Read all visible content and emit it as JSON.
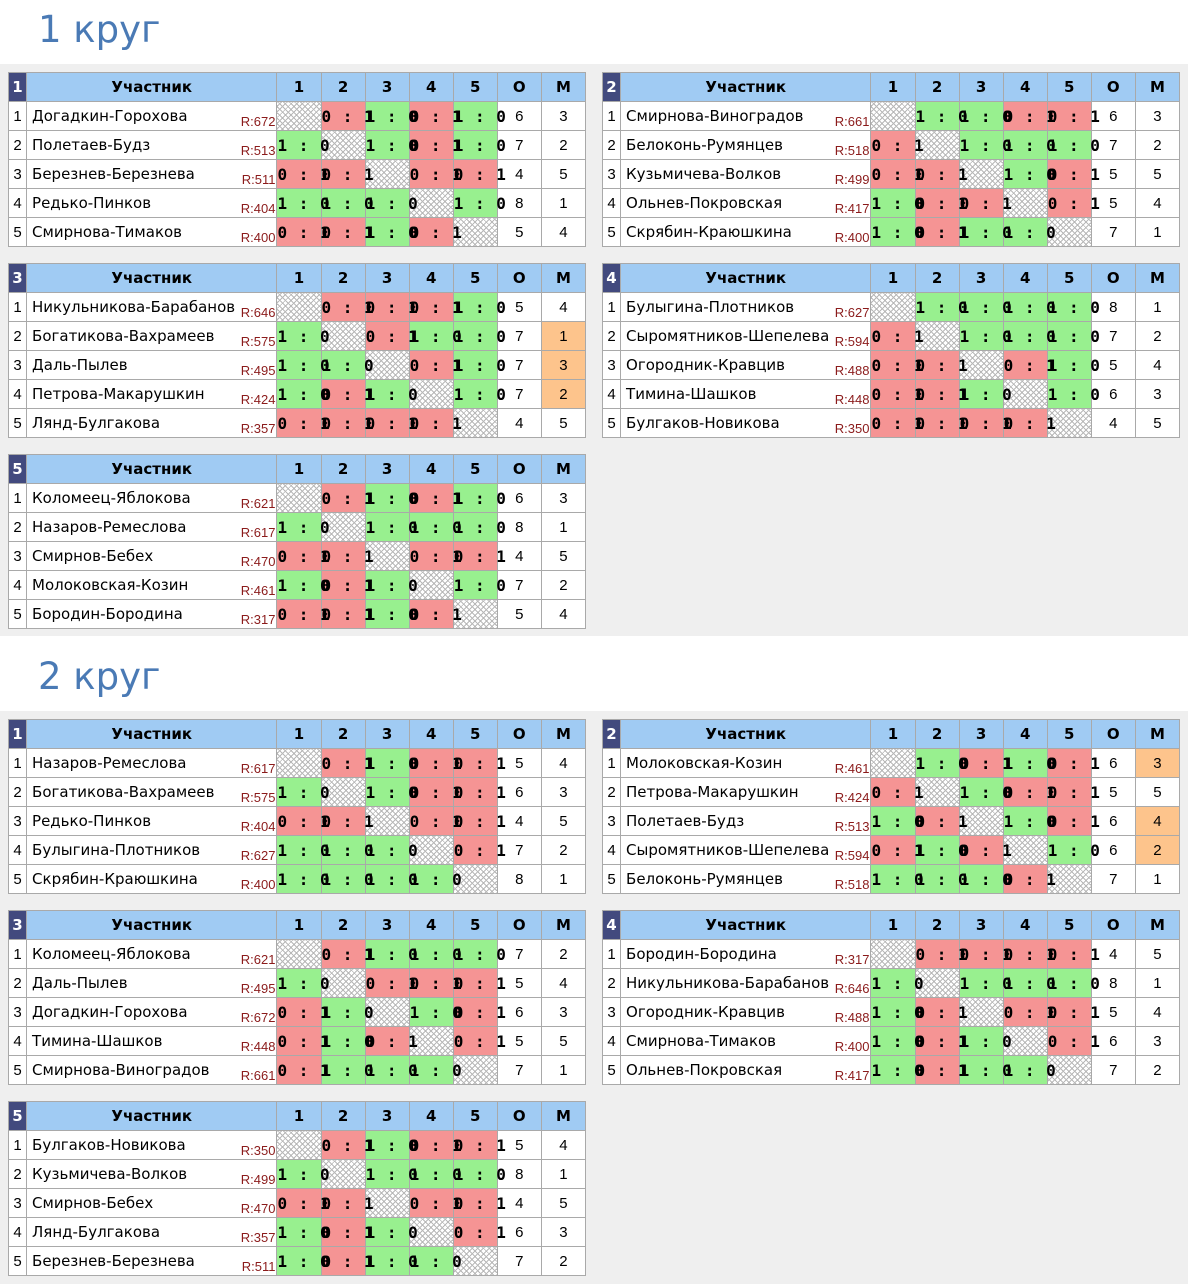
{
  "headers": {
    "participant": "Участник",
    "cols": [
      "1",
      "2",
      "3",
      "4",
      "5"
    ],
    "o": "О",
    "m": "М"
  },
  "colors": {
    "win": "#98f08f",
    "loss": "#f59494",
    "place_highlight": "#fdc48c",
    "header": "#a0cbf3",
    "group_num": "#424a7e",
    "title": "#4a7ab5"
  },
  "rounds": [
    {
      "title": "1 круг",
      "groups": [
        {
          "num": "1",
          "rows": [
            {
              "rank": "1",
              "name": "Догадкин-Горохова",
              "rating": "R:672",
              "cells": [
                "",
                "0 : 1",
                "1 : 0",
                "0 : 1",
                "1 : 0"
              ],
              "o": "6",
              "m": "3",
              "hl": false
            },
            {
              "rank": "2",
              "name": "Полетаев-Будз",
              "rating": "R:513",
              "cells": [
                "1 : 0",
                "",
                "1 : 0",
                "0 : 1",
                "1 : 0"
              ],
              "o": "7",
              "m": "2",
              "hl": false
            },
            {
              "rank": "3",
              "name": "Березнев-Березнева",
              "rating": "R:511",
              "cells": [
                "0 : 1",
                "0 : 1",
                "",
                "0 : 1",
                "0 : 1"
              ],
              "o": "4",
              "m": "5",
              "hl": false
            },
            {
              "rank": "4",
              "name": "Редько-Пинков",
              "rating": "R:404",
              "cells": [
                "1 : 0",
                "1 : 0",
                "1 : 0",
                "",
                "1 : 0"
              ],
              "o": "8",
              "m": "1",
              "hl": false
            },
            {
              "rank": "5",
              "name": "Смирнова-Тимаков",
              "rating": "R:400",
              "cells": [
                "0 : 1",
                "0 : 1",
                "1 : 0",
                "0 : 1",
                ""
              ],
              "o": "5",
              "m": "4",
              "hl": false
            }
          ]
        },
        {
          "num": "2",
          "rows": [
            {
              "rank": "1",
              "name": "Смирнова-Виноградов",
              "rating": "R:661",
              "cells": [
                "",
                "1 : 0",
                "1 : 0",
                "0 : 1",
                "0 : 1"
              ],
              "o": "6",
              "m": "3",
              "hl": false
            },
            {
              "rank": "2",
              "name": "Белоконь-Румянцев",
              "rating": "R:518",
              "cells": [
                "0 : 1",
                "",
                "1 : 0",
                "1 : 0",
                "1 : 0"
              ],
              "o": "7",
              "m": "2",
              "hl": false
            },
            {
              "rank": "3",
              "name": "Кузьмичева-Волков",
              "rating": "R:499",
              "cells": [
                "0 : 1",
                "0 : 1",
                "",
                "1 : 0",
                "0 : 1"
              ],
              "o": "5",
              "m": "5",
              "hl": false
            },
            {
              "rank": "4",
              "name": "Ольнев-Покровская",
              "rating": "R:417",
              "cells": [
                "1 : 0",
                "0 : 1",
                "0 : 1",
                "",
                "0 : 1"
              ],
              "o": "5",
              "m": "4",
              "hl": false
            },
            {
              "rank": "5",
              "name": "Скрябин-Краюшкина",
              "rating": "R:400",
              "cells": [
                "1 : 0",
                "0 : 1",
                "1 : 0",
                "1 : 0",
                ""
              ],
              "o": "7",
              "m": "1",
              "hl": false
            }
          ]
        },
        {
          "num": "3",
          "rows": [
            {
              "rank": "1",
              "name": "Никульникова-Барабанов",
              "rating": "R:646",
              "cells": [
                "",
                "0 : 1",
                "0 : 1",
                "0 : 1",
                "1 : 0"
              ],
              "o": "5",
              "m": "4",
              "hl": false
            },
            {
              "rank": "2",
              "name": "Богатикова-Вахрамеев",
              "rating": "R:575",
              "cells": [
                "1 : 0",
                "",
                "0 : 1",
                "1 : 0",
                "1 : 0"
              ],
              "o": "7",
              "m": "1",
              "hl": true
            },
            {
              "rank": "3",
              "name": "Даль-Пылев",
              "rating": "R:495",
              "cells": [
                "1 : 0",
                "1 : 0",
                "",
                "0 : 1",
                "1 : 0"
              ],
              "o": "7",
              "m": "3",
              "hl": true
            },
            {
              "rank": "4",
              "name": "Петрова-Макарушкин",
              "rating": "R:424",
              "cells": [
                "1 : 0",
                "0 : 1",
                "1 : 0",
                "",
                "1 : 0"
              ],
              "o": "7",
              "m": "2",
              "hl": true
            },
            {
              "rank": "5",
              "name": "Лянд-Булгакова",
              "rating": "R:357",
              "cells": [
                "0 : 1",
                "0 : 1",
                "0 : 1",
                "0 : 1",
                ""
              ],
              "o": "4",
              "m": "5",
              "hl": false
            }
          ]
        },
        {
          "num": "4",
          "rows": [
            {
              "rank": "1",
              "name": "Булыгина-Плотников",
              "rating": "R:627",
              "cells": [
                "",
                "1 : 0",
                "1 : 0",
                "1 : 0",
                "1 : 0"
              ],
              "o": "8",
              "m": "1",
              "hl": false
            },
            {
              "rank": "2",
              "name": "Сыромятников-Шепелева",
              "rating": "R:594",
              "cells": [
                "0 : 1",
                "",
                "1 : 0",
                "1 : 0",
                "1 : 0"
              ],
              "o": "7",
              "m": "2",
              "hl": false
            },
            {
              "rank": "3",
              "name": "Огородник-Кравцив",
              "rating": "R:488",
              "cells": [
                "0 : 1",
                "0 : 1",
                "",
                "0 : 1",
                "1 : 0"
              ],
              "o": "5",
              "m": "4",
              "hl": false
            },
            {
              "rank": "4",
              "name": "Тимина-Шашков",
              "rating": "R:448",
              "cells": [
                "0 : 1",
                "0 : 1",
                "1 : 0",
                "",
                "1 : 0"
              ],
              "o": "6",
              "m": "3",
              "hl": false
            },
            {
              "rank": "5",
              "name": "Булгаков-Новикова",
              "rating": "R:350",
              "cells": [
                "0 : 1",
                "0 : 1",
                "0 : 1",
                "0 : 1",
                ""
              ],
              "o": "4",
              "m": "5",
              "hl": false
            }
          ]
        },
        {
          "num": "5",
          "rows": [
            {
              "rank": "1",
              "name": "Коломеец-Яблокова",
              "rating": "R:621",
              "cells": [
                "",
                "0 : 1",
                "1 : 0",
                "0 : 1",
                "1 : 0"
              ],
              "o": "6",
              "m": "3",
              "hl": false
            },
            {
              "rank": "2",
              "name": "Назаров-Ремеслова",
              "rating": "R:617",
              "cells": [
                "1 : 0",
                "",
                "1 : 0",
                "1 : 0",
                "1 : 0"
              ],
              "o": "8",
              "m": "1",
              "hl": false
            },
            {
              "rank": "3",
              "name": "Смирнов-Бебех",
              "rating": "R:470",
              "cells": [
                "0 : 1",
                "0 : 1",
                "",
                "0 : 1",
                "0 : 1"
              ],
              "o": "4",
              "m": "5",
              "hl": false
            },
            {
              "rank": "4",
              "name": "Молоковская-Козин",
              "rating": "R:461",
              "cells": [
                "1 : 0",
                "0 : 1",
                "1 : 0",
                "",
                "1 : 0"
              ],
              "o": "7",
              "m": "2",
              "hl": false
            },
            {
              "rank": "5",
              "name": "Бородин-Бородина",
              "rating": "R:317",
              "cells": [
                "0 : 1",
                "0 : 1",
                "1 : 0",
                "0 : 1",
                ""
              ],
              "o": "5",
              "m": "4",
              "hl": false
            }
          ]
        }
      ]
    },
    {
      "title": "2 круг",
      "groups": [
        {
          "num": "1",
          "rows": [
            {
              "rank": "1",
              "name": "Назаров-Ремеслова",
              "rating": "R:617",
              "cells": [
                "",
                "0 : 1",
                "1 : 0",
                "0 : 1",
                "0 : 1"
              ],
              "o": "5",
              "m": "4",
              "hl": false
            },
            {
              "rank": "2",
              "name": "Богатикова-Вахрамеев",
              "rating": "R:575",
              "cells": [
                "1 : 0",
                "",
                "1 : 0",
                "0 : 1",
                "0 : 1"
              ],
              "o": "6",
              "m": "3",
              "hl": false
            },
            {
              "rank": "3",
              "name": "Редько-Пинков",
              "rating": "R:404",
              "cells": [
                "0 : 1",
                "0 : 1",
                "",
                "0 : 1",
                "0 : 1"
              ],
              "o": "4",
              "m": "5",
              "hl": false
            },
            {
              "rank": "4",
              "name": "Булыгина-Плотников",
              "rating": "R:627",
              "cells": [
                "1 : 0",
                "1 : 0",
                "1 : 0",
                "",
                "0 : 1"
              ],
              "o": "7",
              "m": "2",
              "hl": false
            },
            {
              "rank": "5",
              "name": "Скрябин-Краюшкина",
              "rating": "R:400",
              "cells": [
                "1 : 0",
                "1 : 0",
                "1 : 0",
                "1 : 0",
                ""
              ],
              "o": "8",
              "m": "1",
              "hl": false
            }
          ]
        },
        {
          "num": "2",
          "rows": [
            {
              "rank": "1",
              "name": "Молоковская-Козин",
              "rating": "R:461",
              "cells": [
                "",
                "1 : 0",
                "0 : 1",
                "1 : 0",
                "0 : 1"
              ],
              "o": "6",
              "m": "3",
              "hl": true
            },
            {
              "rank": "2",
              "name": "Петрова-Макарушкин",
              "rating": "R:424",
              "cells": [
                "0 : 1",
                "",
                "1 : 0",
                "0 : 1",
                "0 : 1"
              ],
              "o": "5",
              "m": "5",
              "hl": false
            },
            {
              "rank": "3",
              "name": "Полетаев-Будз",
              "rating": "R:513",
              "cells": [
                "1 : 0",
                "0 : 1",
                "",
                "1 : 0",
                "0 : 1"
              ],
              "o": "6",
              "m": "4",
              "hl": true
            },
            {
              "rank": "4",
              "name": "Сыромятников-Шепелева",
              "rating": "R:594",
              "cells": [
                "0 : 1",
                "1 : 0",
                "0 : 1",
                "",
                "1 : 0"
              ],
              "o": "6",
              "m": "2",
              "hl": true
            },
            {
              "rank": "5",
              "name": "Белоконь-Румянцев",
              "rating": "R:518",
              "cells": [
                "1 : 0",
                "1 : 0",
                "1 : 0",
                "0 : 1",
                ""
              ],
              "o": "7",
              "m": "1",
              "hl": false
            }
          ]
        },
        {
          "num": "3",
          "rows": [
            {
              "rank": "1",
              "name": "Коломеец-Яблокова",
              "rating": "R:621",
              "cells": [
                "",
                "0 : 1",
                "1 : 0",
                "1 : 0",
                "1 : 0"
              ],
              "o": "7",
              "m": "2",
              "hl": false
            },
            {
              "rank": "2",
              "name": "Даль-Пылев",
              "rating": "R:495",
              "cells": [
                "1 : 0",
                "",
                "0 : 1",
                "0 : 1",
                "0 : 1"
              ],
              "o": "5",
              "m": "4",
              "hl": false
            },
            {
              "rank": "3",
              "name": "Догадкин-Горохова",
              "rating": "R:672",
              "cells": [
                "0 : 1",
                "1 : 0",
                "",
                "1 : 0",
                "0 : 1"
              ],
              "o": "6",
              "m": "3",
              "hl": false
            },
            {
              "rank": "4",
              "name": "Тимина-Шашков",
              "rating": "R:448",
              "cells": [
                "0 : 1",
                "1 : 0",
                "0 : 1",
                "",
                "0 : 1"
              ],
              "o": "5",
              "m": "5",
              "hl": false
            },
            {
              "rank": "5",
              "name": "Смирнова-Виноградов",
              "rating": "R:661",
              "cells": [
                "0 : 1",
                "1 : 0",
                "1 : 0",
                "1 : 0",
                ""
              ],
              "o": "7",
              "m": "1",
              "hl": false
            }
          ]
        },
        {
          "num": "4",
          "rows": [
            {
              "rank": "1",
              "name": "Бородин-Бородина",
              "rating": "R:317",
              "cells": [
                "",
                "0 : 1",
                "0 : 1",
                "0 : 1",
                "0 : 1"
              ],
              "o": "4",
              "m": "5",
              "hl": false
            },
            {
              "rank": "2",
              "name": "Никульникова-Барабанов",
              "rating": "R:646",
              "cells": [
                "1 : 0",
                "",
                "1 : 0",
                "1 : 0",
                "1 : 0"
              ],
              "o": "8",
              "m": "1",
              "hl": false
            },
            {
              "rank": "3",
              "name": "Огородник-Кравцив",
              "rating": "R:488",
              "cells": [
                "1 : 0",
                "0 : 1",
                "",
                "0 : 1",
                "0 : 1"
              ],
              "o": "5",
              "m": "4",
              "hl": false
            },
            {
              "rank": "4",
              "name": "Смирнова-Тимаков",
              "rating": "R:400",
              "cells": [
                "1 : 0",
                "0 : 1",
                "1 : 0",
                "",
                "0 : 1"
              ],
              "o": "6",
              "m": "3",
              "hl": false
            },
            {
              "rank": "5",
              "name": "Ольнев-Покровская",
              "rating": "R:417",
              "cells": [
                "1 : 0",
                "0 : 1",
                "1 : 0",
                "1 : 0",
                ""
              ],
              "o": "7",
              "m": "2",
              "hl": false
            }
          ]
        },
        {
          "num": "5",
          "rows": [
            {
              "rank": "1",
              "name": "Булгаков-Новикова",
              "rating": "R:350",
              "cells": [
                "",
                "0 : 1",
                "1 : 0",
                "0 : 1",
                "0 : 1"
              ],
              "o": "5",
              "m": "4",
              "hl": false
            },
            {
              "rank": "2",
              "name": "Кузьмичева-Волков",
              "rating": "R:499",
              "cells": [
                "1 : 0",
                "",
                "1 : 0",
                "1 : 0",
                "1 : 0"
              ],
              "o": "8",
              "m": "1",
              "hl": false
            },
            {
              "rank": "3",
              "name": "Смирнов-Бебех",
              "rating": "R:470",
              "cells": [
                "0 : 1",
                "0 : 1",
                "",
                "0 : 1",
                "0 : 1"
              ],
              "o": "4",
              "m": "5",
              "hl": false
            },
            {
              "rank": "4",
              "name": "Лянд-Булгакова",
              "rating": "R:357",
              "cells": [
                "1 : 0",
                "0 : 1",
                "1 : 0",
                "",
                "0 : 1"
              ],
              "o": "6",
              "m": "3",
              "hl": false
            },
            {
              "rank": "5",
              "name": "Березнев-Березнева",
              "rating": "R:511",
              "cells": [
                "1 : 0",
                "0 : 1",
                "1 : 0",
                "1 : 0",
                ""
              ],
              "o": "7",
              "m": "2",
              "hl": false
            }
          ]
        }
      ]
    }
  ]
}
